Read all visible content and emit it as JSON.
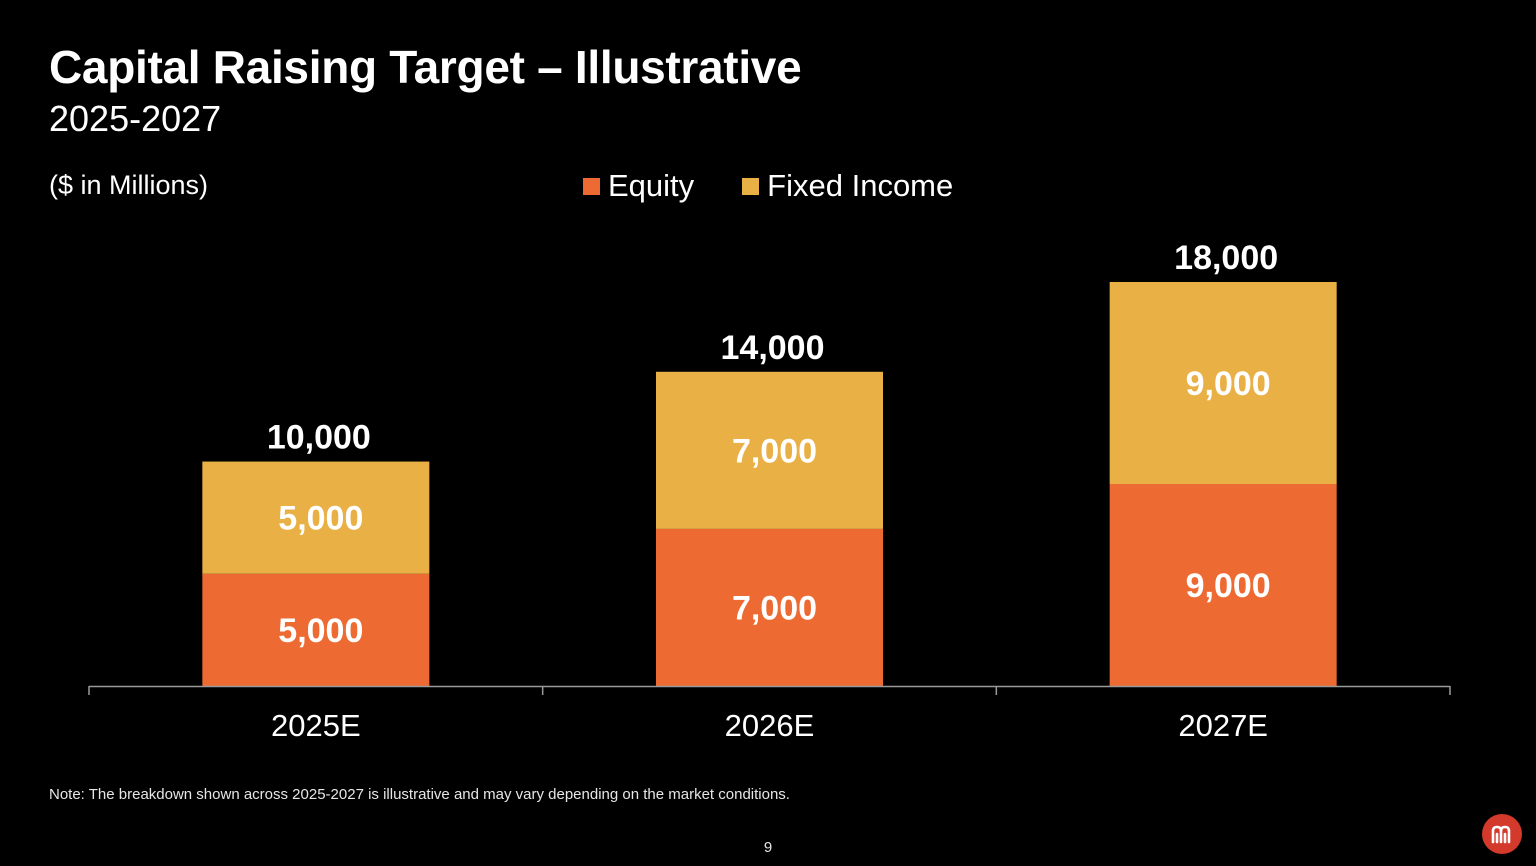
{
  "title": "Capital Raising Target – Illustrative",
  "subtitle": "2025-2027",
  "units_label": "($ in Millions)",
  "note": "Note: The breakdown shown across 2025-2027 is illustrative and may vary depending on the market conditions.",
  "page_number": "9",
  "colors": {
    "equity": "#ED6A33",
    "fixed_income": "#E9B046",
    "background": "#000000",
    "text": "#FFFFFF",
    "axis": "#9A9A9A",
    "logo": "#D33A2C"
  },
  "chart_data": {
    "type": "bar",
    "stacked": true,
    "categories": [
      "2025E",
      "2026E",
      "2027E"
    ],
    "series": [
      {
        "name": "Equity",
        "values": [
          5000,
          7000,
          9000
        ],
        "labels": [
          "5,000",
          "7,000",
          "9,000"
        ]
      },
      {
        "name": "Fixed Income",
        "values": [
          5000,
          7000,
          9000
        ],
        "labels": [
          "5,000",
          "7,000",
          "9,000"
        ]
      }
    ],
    "totals": [
      10000,
      14000,
      18000
    ],
    "total_labels": [
      "10,000",
      "14,000",
      "18,000"
    ],
    "ylim": [
      0,
      18000
    ],
    "grid": false,
    "legend_position": "top-center"
  }
}
